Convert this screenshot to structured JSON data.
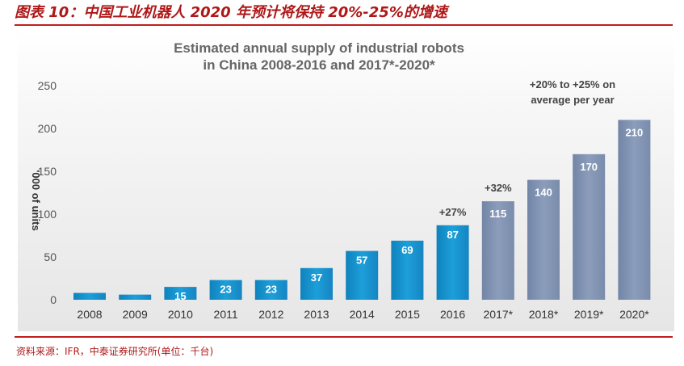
{
  "figure": {
    "title": "图表 10：中国工业机器人 2020 年预计将保持 20%-25%的增速",
    "source": "资料来源：IFR，中泰证券研究所(单位：千台)"
  },
  "colors": {
    "actual_bar": "#1a9ad6",
    "forecast_bar": "#8496b5",
    "accent_red": "#c11d1d",
    "plot_bg": "#ededed"
  },
  "chart_data": {
    "type": "bar",
    "title_lines": [
      "Estimated annual supply of industrial robots",
      "in China 2008-2016 and 2017*-2020*"
    ],
    "xlabel": "",
    "ylabel": "'000 of units",
    "ylim": [
      0,
      250
    ],
    "yticks": [
      0,
      50,
      100,
      150,
      200,
      250
    ],
    "grid": false,
    "categories": [
      "2008",
      "2009",
      "2010",
      "2011",
      "2012",
      "2013",
      "2014",
      "2015",
      "2016",
      "2017*",
      "2018*",
      "2019*",
      "2020*"
    ],
    "values": [
      8,
      6,
      15,
      23,
      23,
      37,
      57,
      69,
      87,
      115,
      140,
      170,
      210
    ],
    "value_labels": [
      "",
      "",
      "15",
      "23",
      "23",
      "37",
      "57",
      "69",
      "87",
      "115",
      "140",
      "170",
      "210"
    ],
    "forecast": [
      false,
      false,
      false,
      false,
      false,
      false,
      false,
      false,
      false,
      true,
      true,
      true,
      true
    ],
    "annotations": [
      {
        "category": "2016",
        "text": "+27%"
      },
      {
        "category": "2017*",
        "text": "+32%"
      }
    ],
    "forecast_note_lines": [
      "+20% to +25% on",
      "average per year"
    ]
  }
}
